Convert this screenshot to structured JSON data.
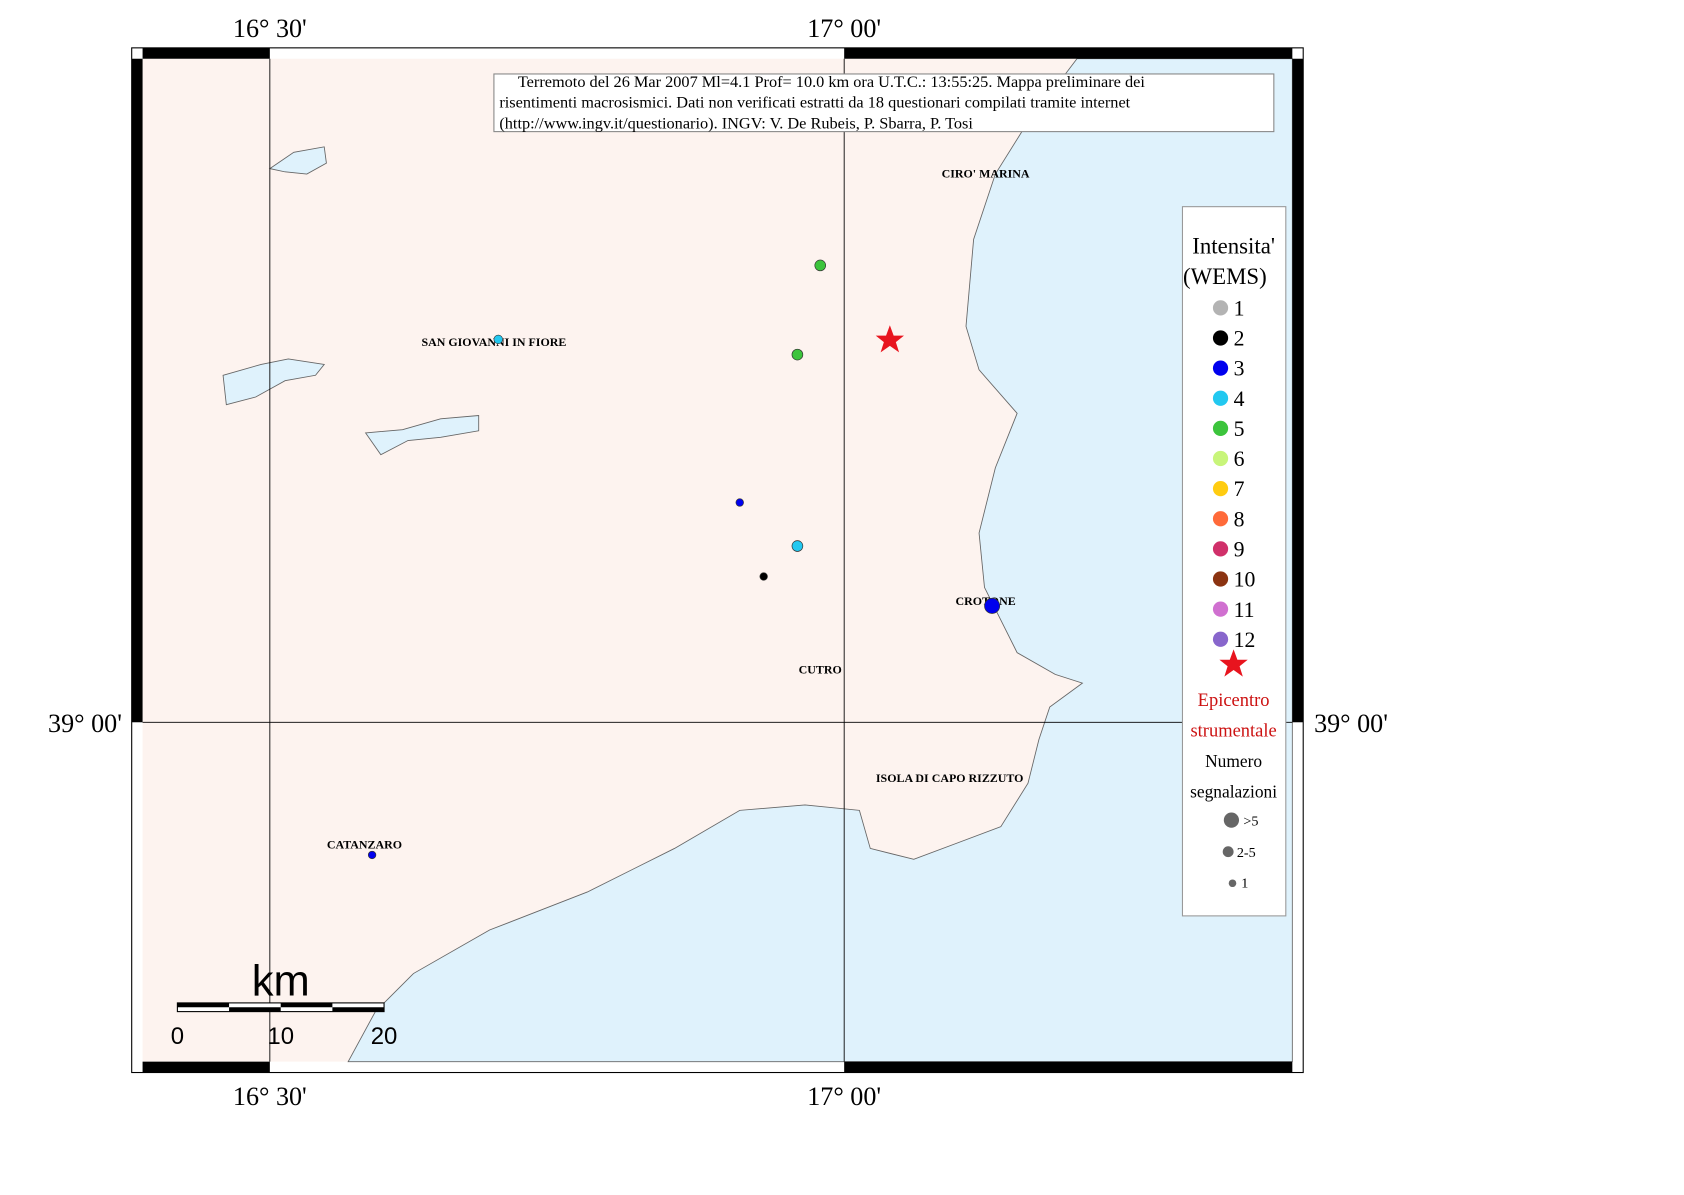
{
  "map": {
    "note_lines": [
      "Terremoto del 26 Mar 2007 Ml=4.1 Prof= 10.0 km ora U.T.C.: 13:55:25.  Mappa preliminare dei",
      "risentimenti macrosismici.   Dati non verificati estratti da 18 questionari compilati tramite internet",
      "(http://www.ingv.it/questionario).   INGV: V.  De Rubeis, P.  Sbarra, P.  Tosi"
    ],
    "lon_labels": [
      "16° 30'",
      "17° 00'"
    ],
    "lat_labels": [
      "39° 00'"
    ],
    "places": [
      "CIRO' MARINA",
      "SAN GIOVANNI IN FIORE",
      "CROTONE",
      "CUTRO",
      "ISOLA DI CAPO RIZZUTO",
      "CATANZARO"
    ],
    "scale": {
      "unit": "km",
      "labels": [
        "0",
        "10",
        "20"
      ]
    },
    "legend": {
      "title": [
        "Intensita'",
        "(WEMS)"
      ],
      "items": [
        {
          "label": "1",
          "color": "#b3b3b3"
        },
        {
          "label": "2",
          "color": "#000000"
        },
        {
          "label": "3",
          "color": "#0000ee"
        },
        {
          "label": "4",
          "color": "#22c8f0"
        },
        {
          "label": "5",
          "color": "#3cc43c"
        },
        {
          "label": "6",
          "color": "#c8f57a"
        },
        {
          "label": "7",
          "color": "#ffcc11"
        },
        {
          "label": "8",
          "color": "#ff6a3a"
        },
        {
          "label": "9",
          "color": "#d0306a"
        },
        {
          "label": "10",
          "color": "#8b3311"
        },
        {
          "label": "11",
          "color": "#d070d0"
        },
        {
          "label": "12",
          "color": "#8866cc"
        }
      ],
      "epicenter": [
        "Epicentro",
        "strumentale"
      ],
      "count_title": [
        "Numero",
        "segnalazioni"
      ],
      "count_labels": [
        ">5",
        "2-5",
        "1"
      ]
    }
  }
}
